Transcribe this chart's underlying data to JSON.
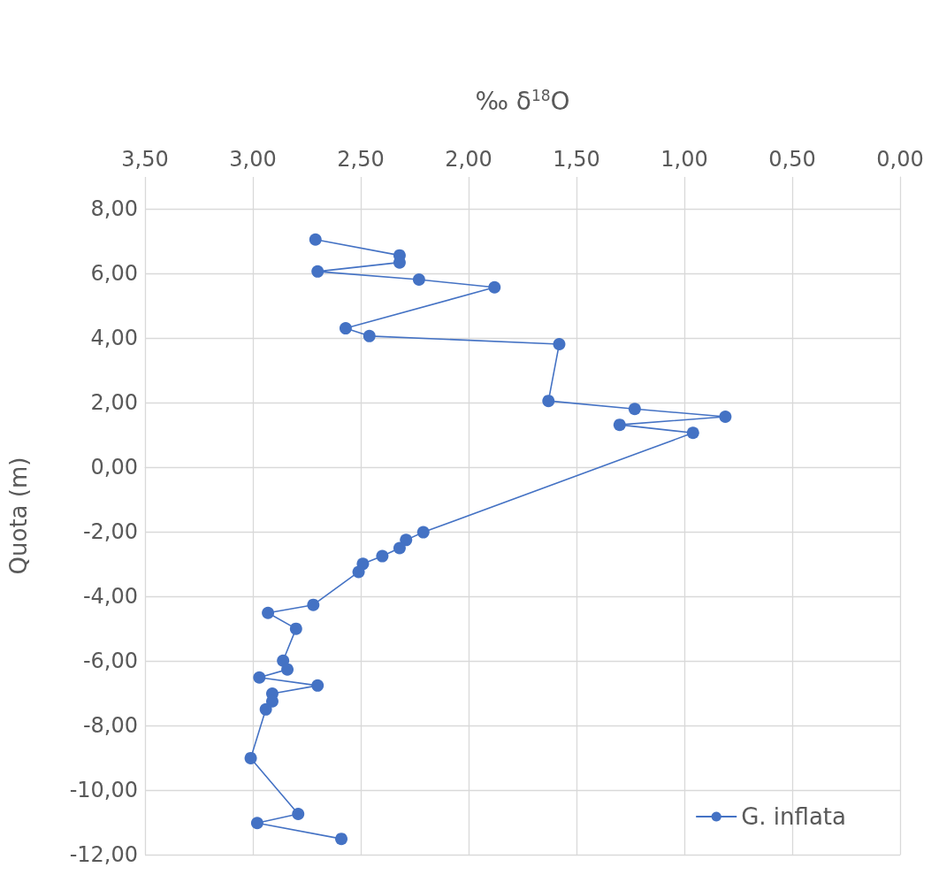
{
  "chart_data": {
    "type": "line",
    "xlabel": "‰ δ$^{18}$O",
    "ylabel": "Quota (m)",
    "xlim": [
      3.5,
      0
    ],
    "xticks": [
      {
        "value": 3.5,
        "label": "3,50"
      },
      {
        "value": 3,
        "label": "3,00"
      },
      {
        "value": 2.5,
        "label": "2,50"
      },
      {
        "value": 2,
        "label": "2,00"
      },
      {
        "value": 1.5,
        "label": "1,50"
      },
      {
        "value": 1,
        "label": "1,00"
      },
      {
        "value": 0.5,
        "label": "0,50"
      },
      {
        "value": 0,
        "label": "0,00"
      }
    ],
    "ylim": [
      -12,
      9
    ],
    "yticks": [
      {
        "value": -12,
        "label": "-12,00"
      },
      {
        "value": -10,
        "label": "-10,00"
      },
      {
        "value": -8,
        "label": "-8,00"
      },
      {
        "value": -6,
        "label": "-6,00"
      },
      {
        "value": -4,
        "label": "-4,00"
      },
      {
        "value": -2,
        "label": "-2,00"
      },
      {
        "value": 0,
        "label": "0,00"
      },
      {
        "value": 2,
        "label": "2,00"
      },
      {
        "value": 4,
        "label": "4,00"
      },
      {
        "value": 6,
        "label": "6,00"
      },
      {
        "value": 8,
        "label": "8,00"
      }
    ],
    "grid": true,
    "legend": "bottom right",
    "marker": "circle",
    "line_style": "solid",
    "series": [
      {
        "name": "G. inflata",
        "color": "#4472c4",
        "x": [
          2.71,
          2.32,
          2.32,
          2.7,
          2.23,
          1.88,
          2.57,
          2.46,
          1.58,
          1.63,
          1.23,
          0.81,
          1.3,
          0.96,
          2.21,
          2.29,
          2.32,
          2.4,
          2.49,
          2.51,
          2.72,
          2.93,
          2.8,
          2.86,
          2.84,
          2.97,
          2.7,
          2.91,
          2.91,
          2.94,
          3.01,
          2.79,
          2.98,
          2.59
        ],
        "values": [
          7.06,
          6.57,
          6.35,
          6.07,
          5.82,
          5.58,
          4.31,
          4.07,
          3.82,
          2.06,
          1.81,
          1.57,
          1.32,
          1.07,
          -2.01,
          -2.25,
          -2.5,
          -2.75,
          -2.99,
          -3.24,
          -4.26,
          -4.51,
          -5.0,
          -5.99,
          -6.26,
          -6.51,
          -6.76,
          -7.01,
          -7.25,
          -7.5,
          -9.01,
          -10.74,
          -11.02,
          -11.51
        ]
      }
    ]
  }
}
